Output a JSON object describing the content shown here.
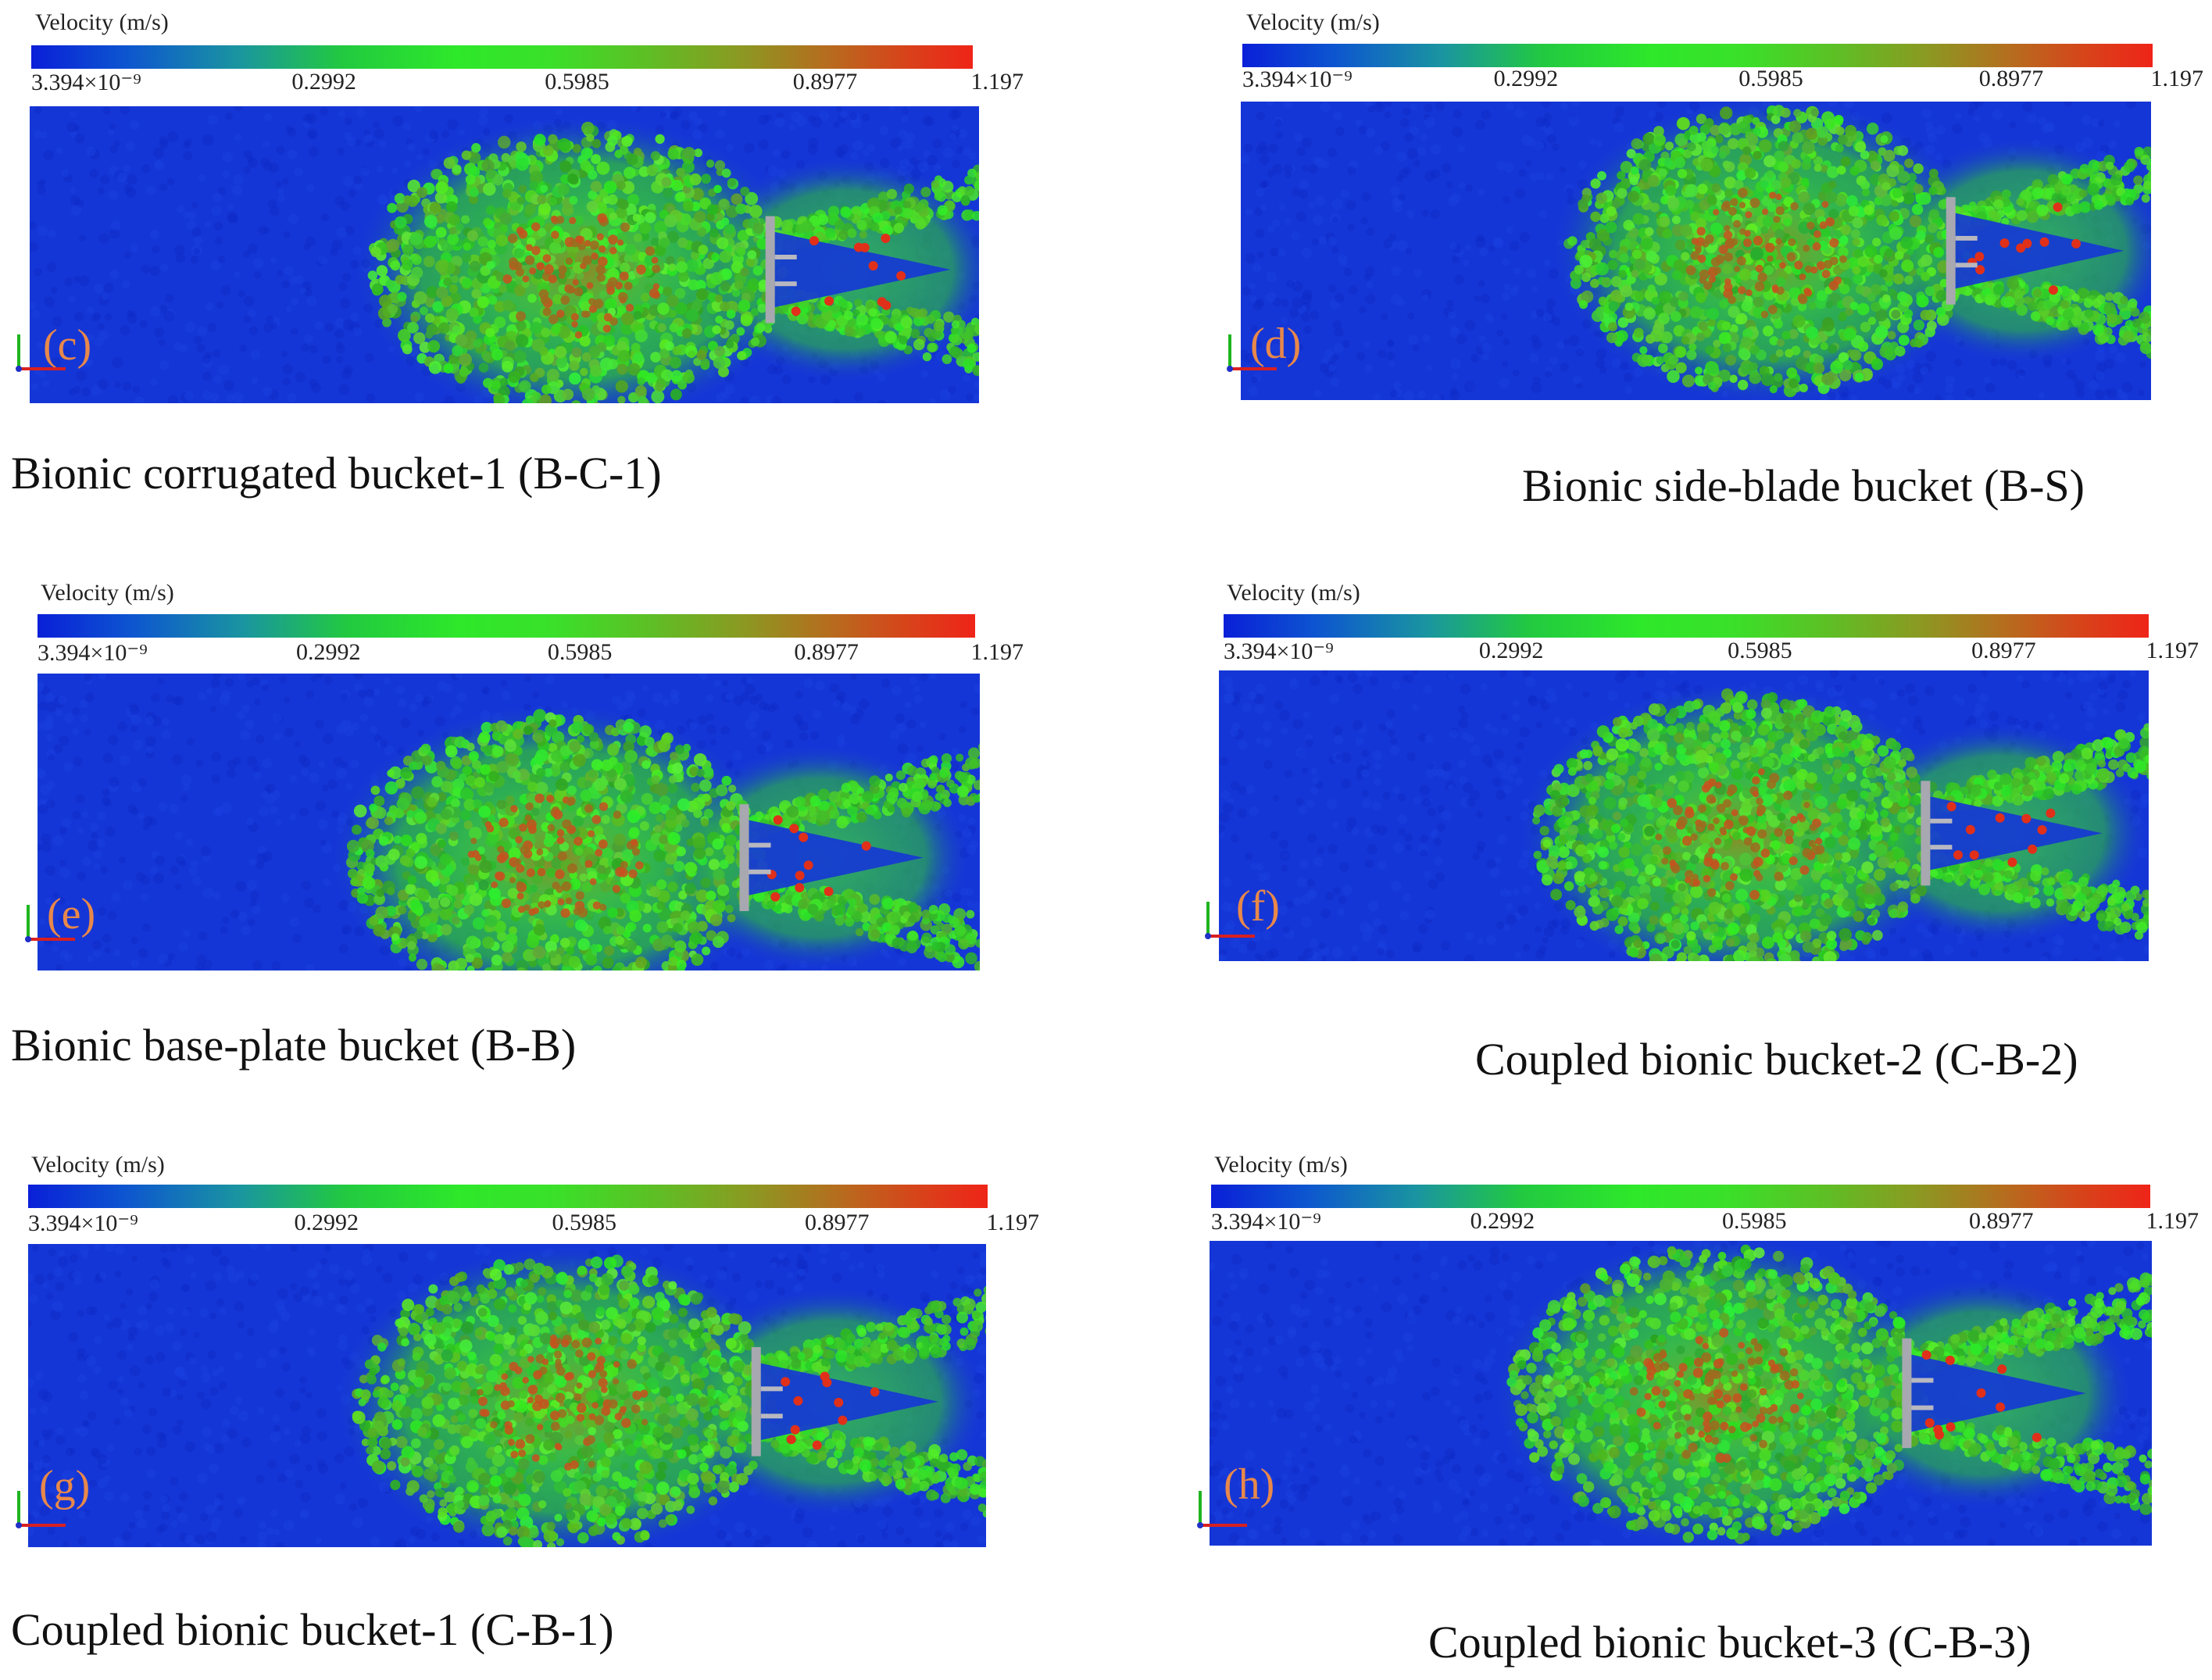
{
  "legend": {
    "title": "Velocity  (m/s)",
    "ticks": [
      "3.394×10⁻⁹",
      "0.2992",
      "0.5985",
      "0.8977",
      "1.197"
    ]
  },
  "panels": [
    {
      "id": "c",
      "label": "(c)",
      "caption": "Bionic corrugated bucket-1 (B-C-1)"
    },
    {
      "id": "d",
      "label": "(d)",
      "caption": "Bionic side-blade bucket (B-S)"
    },
    {
      "id": "e",
      "label": "(e)",
      "caption": "Bionic base-plate bucket (B-B)"
    },
    {
      "id": "f",
      "label": "(f)",
      "caption": "Coupled bionic bucket-2 (C-B-2)"
    },
    {
      "id": "g",
      "label": "(g)",
      "caption": "Coupled bionic bucket-1 (C-B-1)"
    },
    {
      "id": "h",
      "label": "(h)",
      "caption": "Coupled bionic bucket-3 (C-B-3)"
    }
  ],
  "colors": {
    "background_particles": "#1536d6",
    "mid_velocity": "#2ee82a",
    "high_velocity": "#e0301a",
    "panel_label": "#e8884a",
    "bucket": "#a8a8b0"
  }
}
